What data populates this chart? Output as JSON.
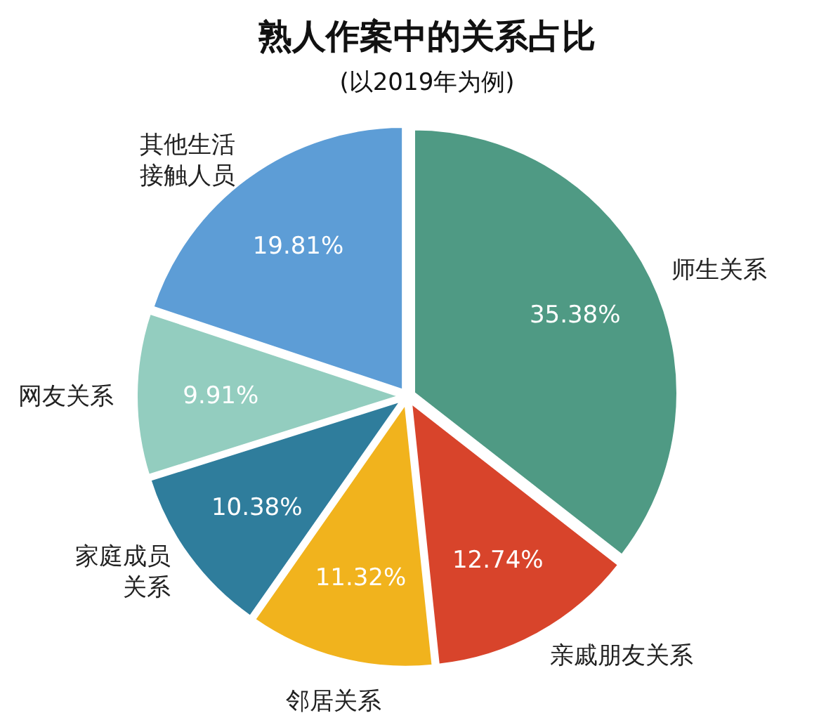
{
  "chart_data": {
    "type": "pie",
    "title": "熟人作案中的关系占比",
    "subtitle": "(以2019年为例)",
    "categories": [
      "师生关系",
      "亲戚朋友关系",
      "邻居关系",
      "家庭成员关系",
      "网友关系",
      "其他生活接触人员"
    ],
    "values": [
      35.38,
      12.74,
      11.32,
      10.38,
      9.91,
      19.81
    ],
    "value_labels": [
      "35.38%",
      "12.74%",
      "11.32%",
      "10.38%",
      "9.91%",
      "19.81%"
    ],
    "colors": [
      "#4f9a84",
      "#d8442b",
      "#f1b31d",
      "#2f7d9c",
      "#93cdbf",
      "#5d9dd6"
    ]
  }
}
